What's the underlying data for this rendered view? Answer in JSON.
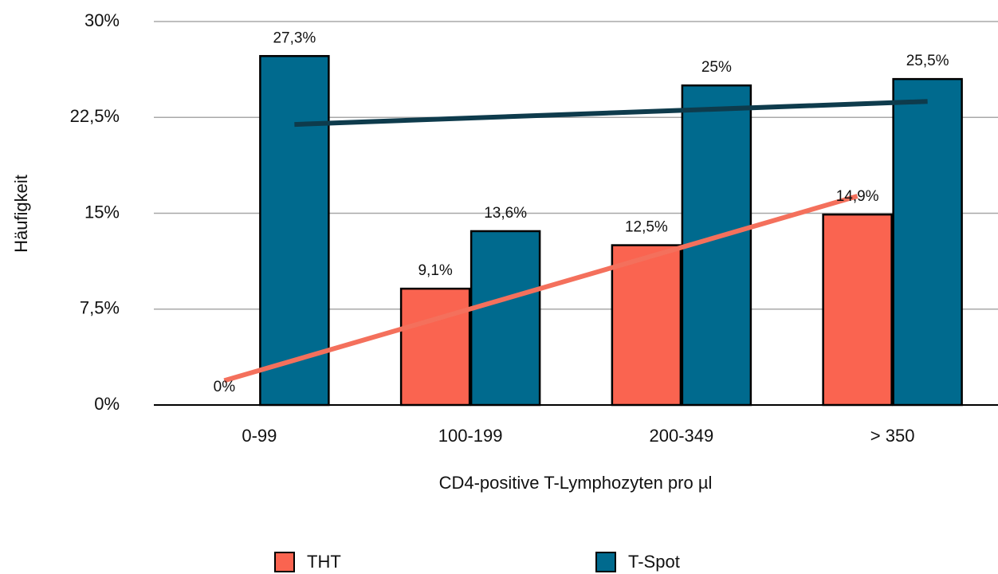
{
  "chart_data": {
    "type": "bar",
    "x_label": "CD4-positive T-Lymphozyten pro µl",
    "y_label": "Häufigkeit",
    "categories": [
      "0-99",
      "100-199",
      "200-349",
      "> 350"
    ],
    "series": [
      {
        "name": "THT",
        "color": "#fa6450",
        "values": [
          0,
          9.1,
          12.5,
          14.9
        ],
        "value_labels": [
          "0%",
          "9,1%",
          "12,5%",
          "14,9%"
        ],
        "trendline": "linear",
        "trendline_color": "#f4705c"
      },
      {
        "name": "T-Spot",
        "color": "#006a8e",
        "values": [
          27.3,
          13.6,
          25,
          25.5
        ],
        "value_labels": [
          "27,3%",
          "13,6%",
          "25%",
          "25,5%"
        ],
        "trendline": "linear",
        "trendline_color": "#0e3b4c"
      }
    ],
    "ylim": [
      0,
      30
    ],
    "yticks": [
      {
        "value": 0,
        "label": "0%"
      },
      {
        "value": 7.5,
        "label": "7,5%"
      },
      {
        "value": 15,
        "label": "15%"
      },
      {
        "value": 22.5,
        "label": "22,5%"
      },
      {
        "value": 30,
        "label": "30%"
      }
    ],
    "grid": true,
    "legend": "bottom"
  }
}
